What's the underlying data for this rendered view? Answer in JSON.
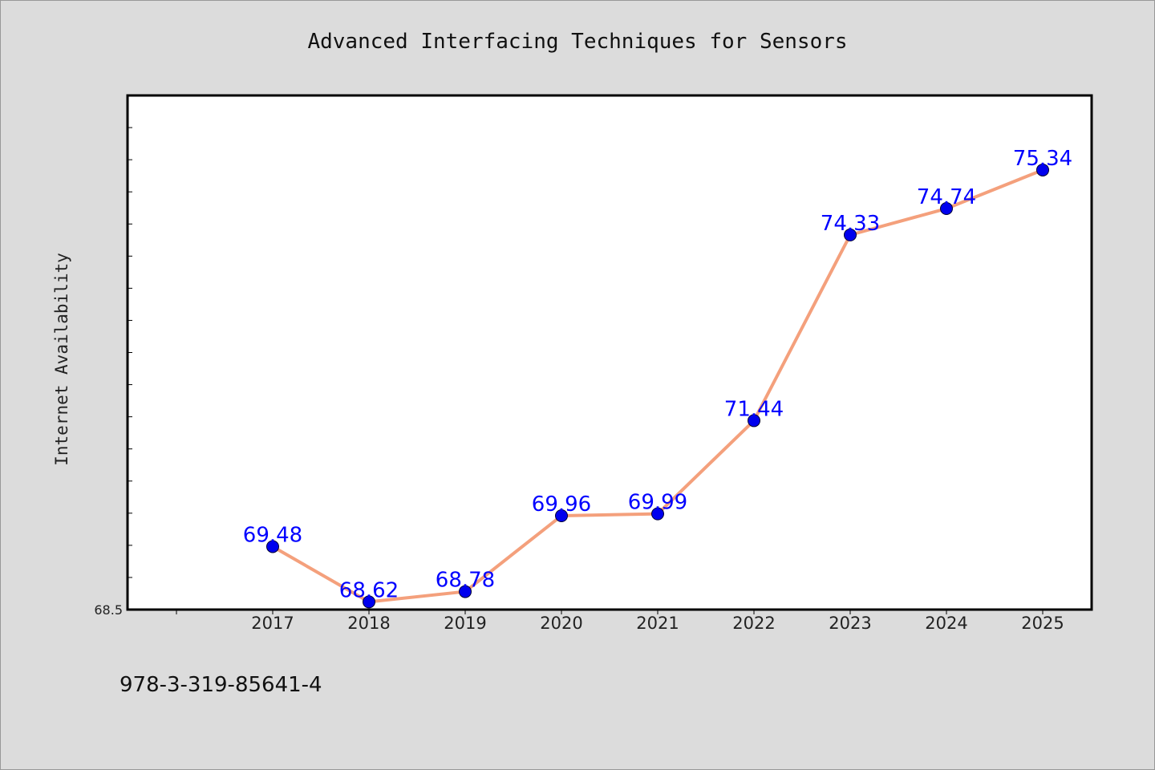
{
  "chart_data": {
    "type": "line",
    "title": "Advanced Interfacing Techniques for Sensors",
    "xlabel": "",
    "ylabel": "Internet Availability",
    "categories": [
      "2017",
      "2018",
      "2019",
      "2020",
      "2021",
      "2022",
      "2023",
      "2024",
      "2025"
    ],
    "series": [
      {
        "values": [
          69.48,
          68.62,
          68.78,
          69.96,
          69.99,
          71.44,
          74.33,
          74.74,
          75.34
        ],
        "labels": [
          "69.48",
          "68.62",
          "68.78",
          "69.96",
          "69.99",
          "71.44",
          "74.33",
          "74.74",
          "75.34"
        ]
      }
    ],
    "ylim": [
      68.5,
      76.5
    ],
    "ytick_labels": [
      "68.5"
    ],
    "grid": false,
    "legend": "none",
    "colors": {
      "line": "#f4a07c",
      "marker": "#0000ee",
      "marker_edge": "#000033",
      "data_label": "#0000ff",
      "plot_background": "#ffffff",
      "figure_background": "#dcdcdc"
    }
  },
  "footer": {
    "text": "978-3-319-85641-4"
  }
}
